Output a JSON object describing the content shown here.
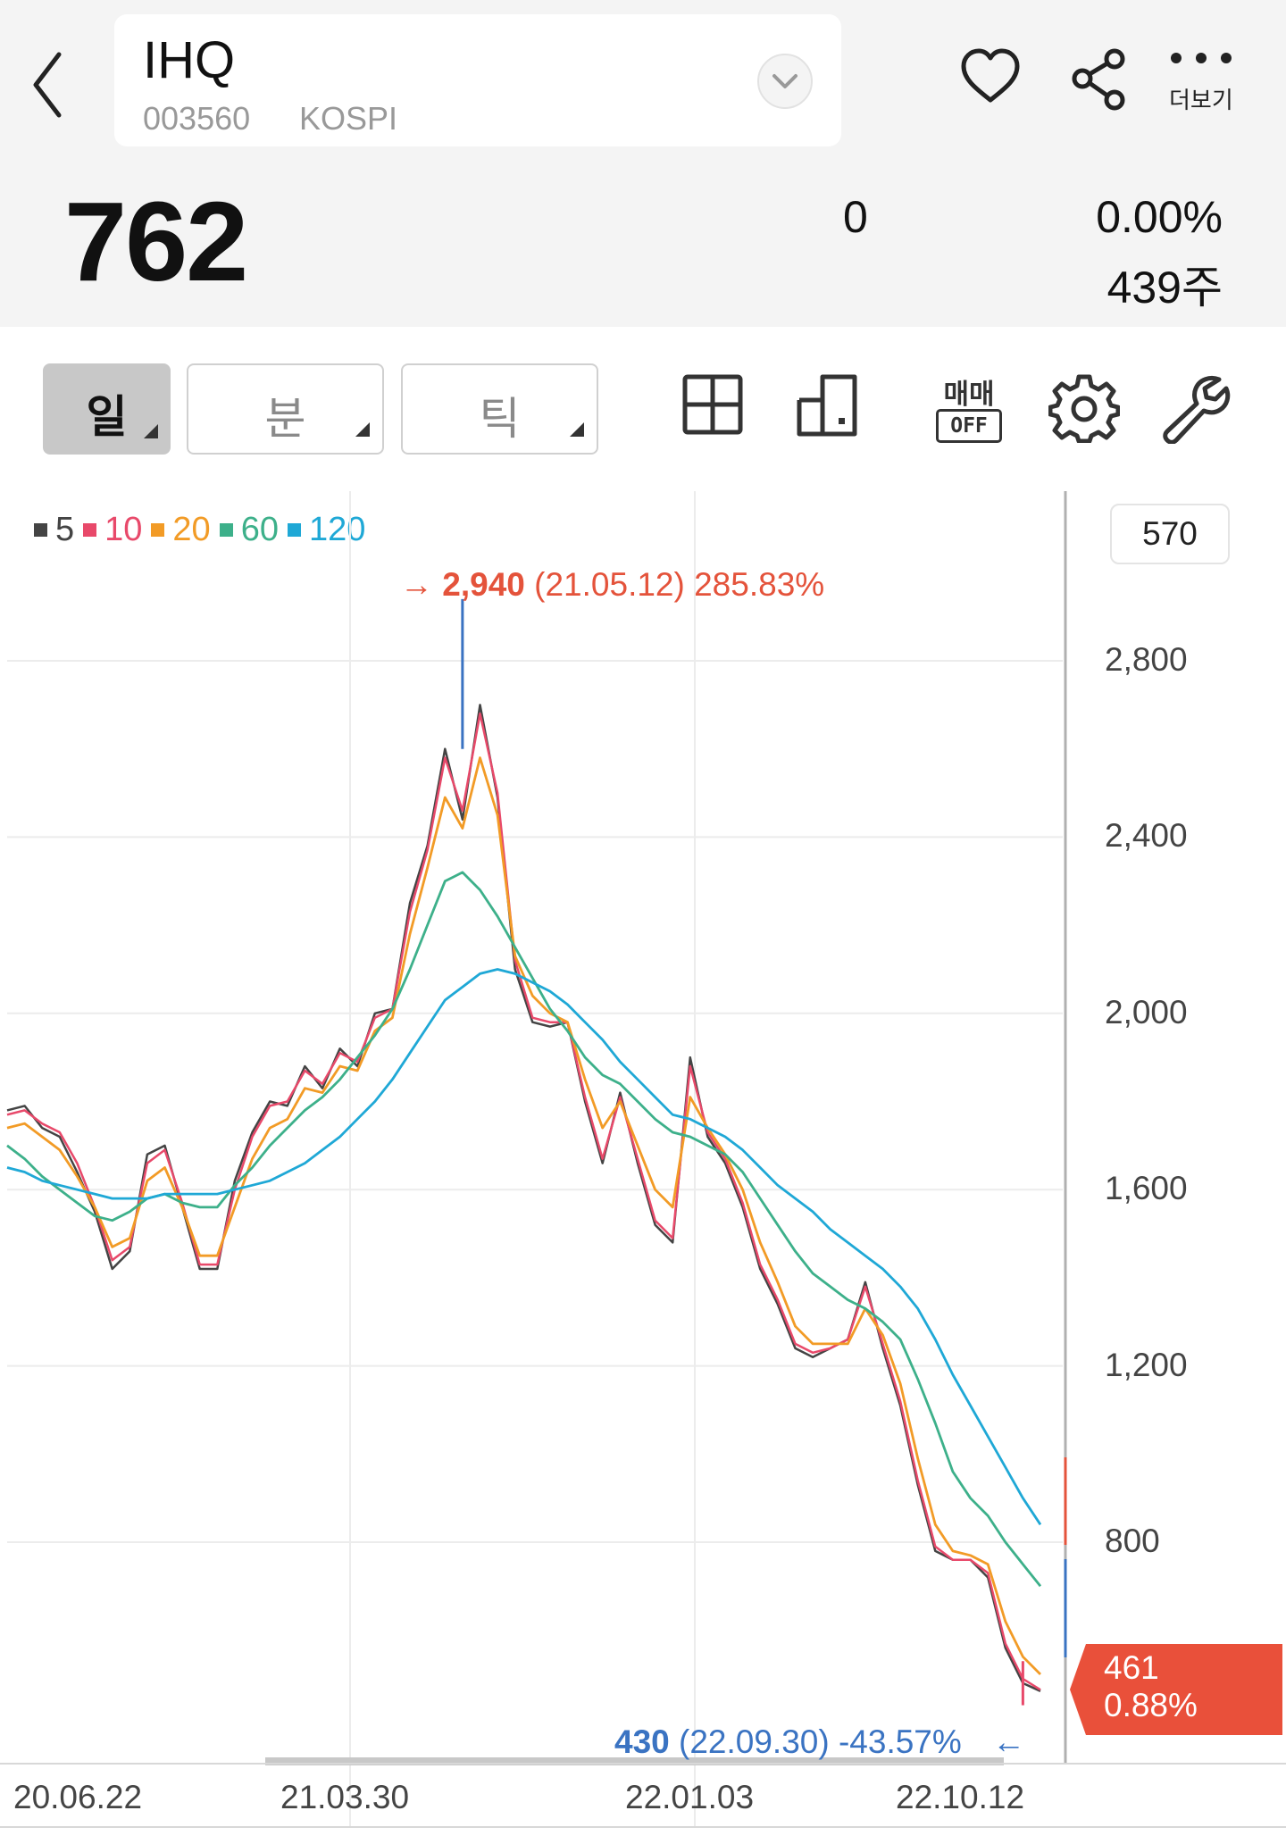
{
  "header": {
    "name": "IHQ",
    "code": "003560",
    "market": "KOSPI",
    "more_label": "더보기"
  },
  "quote": {
    "price": "762",
    "change": "0",
    "change_pct": "0.00%",
    "volume": "439주"
  },
  "toolbar": {
    "periods": [
      "일",
      "분",
      "틱"
    ],
    "trade_label_top": "매매",
    "trade_label_bottom": "OFF",
    "icons": [
      "grid-icon",
      "layout-icon",
      "trade-toggle-icon",
      "settings-icon",
      "wrench-icon"
    ]
  },
  "chart_data": {
    "type": "line",
    "legend": [
      {
        "label": "5",
        "color": "#444444"
      },
      {
        "label": "10",
        "color": "#e8496a"
      },
      {
        "label": "20",
        "color": "#f29b26"
      },
      {
        "label": "60",
        "color": "#3db08a"
      },
      {
        "label": "120",
        "color": "#1fa8d6"
      }
    ],
    "yticks": [
      2800,
      2400,
      2000,
      1600,
      1200,
      800
    ],
    "ylim": [
      400,
      3180
    ],
    "x_labels": [
      "20.06.22",
      "21.03.30",
      "22.01.03",
      "22.10.12"
    ],
    "current_box": "570",
    "high": {
      "value_text": "2,940",
      "date_text": "(21.05.12)",
      "pct_text": "285.83%"
    },
    "low": {
      "value_text": "430",
      "date_text": "(22.09.30)",
      "pct_text": "-43.57%"
    },
    "last": {
      "value": "461",
      "pct": "0.88%"
    },
    "series": [
      {
        "name": "5",
        "color": "#444444",
        "values": [
          1780,
          1790,
          1740,
          1720,
          1640,
          1550,
          1420,
          1460,
          1680,
          1700,
          1560,
          1420,
          1420,
          1620,
          1730,
          1800,
          1790,
          1880,
          1830,
          1920,
          1880,
          2000,
          2010,
          2250,
          2380,
          2600,
          2440,
          2700,
          2490,
          2100,
          1980,
          1970,
          1980,
          1800,
          1660,
          1820,
          1660,
          1520,
          1480,
          1900,
          1720,
          1660,
          1560,
          1420,
          1340,
          1240,
          1220,
          1240,
          1260,
          1390,
          1240,
          1110,
          930,
          780,
          760,
          760,
          720,
          560,
          480,
          462
        ]
      },
      {
        "name": "10",
        "color": "#e8496a",
        "values": [
          1770,
          1780,
          1750,
          1730,
          1660,
          1560,
          1440,
          1470,
          1660,
          1690,
          1570,
          1430,
          1430,
          1600,
          1720,
          1790,
          1800,
          1870,
          1840,
          1910,
          1890,
          1990,
          2010,
          2230,
          2370,
          2580,
          2460,
          2680,
          2500,
          2120,
          1990,
          1980,
          1980,
          1810,
          1670,
          1810,
          1670,
          1530,
          1490,
          1880,
          1730,
          1670,
          1570,
          1430,
          1350,
          1250,
          1230,
          1240,
          1260,
          1380,
          1250,
          1120,
          940,
          790,
          760,
          760,
          730,
          570,
          490,
          465
        ]
      },
      {
        "name": "20",
        "color": "#f29b26",
        "values": [
          1740,
          1750,
          1720,
          1690,
          1630,
          1560,
          1470,
          1490,
          1620,
          1650,
          1560,
          1450,
          1450,
          1560,
          1670,
          1740,
          1760,
          1830,
          1820,
          1880,
          1870,
          1960,
          1990,
          2180,
          2330,
          2490,
          2420,
          2580,
          2450,
          2130,
          2040,
          2000,
          1980,
          1850,
          1740,
          1800,
          1700,
          1600,
          1560,
          1810,
          1740,
          1680,
          1600,
          1480,
          1390,
          1290,
          1250,
          1250,
          1250,
          1330,
          1270,
          1160,
          990,
          840,
          780,
          770,
          750,
          620,
          540,
          500
        ]
      },
      {
        "name": "60",
        "color": "#3db08a",
        "values": [
          1700,
          1670,
          1630,
          1600,
          1570,
          1540,
          1530,
          1550,
          1580,
          1590,
          1570,
          1560,
          1560,
          1610,
          1650,
          1700,
          1740,
          1780,
          1810,
          1850,
          1900,
          1950,
          2010,
          2100,
          2200,
          2300,
          2320,
          2280,
          2220,
          2150,
          2080,
          2010,
          1960,
          1900,
          1860,
          1840,
          1800,
          1760,
          1730,
          1720,
          1700,
          1680,
          1640,
          1580,
          1520,
          1460,
          1410,
          1380,
          1350,
          1330,
          1300,
          1260,
          1170,
          1070,
          960,
          900,
          860,
          800,
          750,
          700
        ]
      },
      {
        "name": "120",
        "color": "#1fa8d6",
        "values": [
          1650,
          1640,
          1620,
          1610,
          1600,
          1590,
          1580,
          1580,
          1580,
          1590,
          1590,
          1590,
          1590,
          1600,
          1610,
          1620,
          1640,
          1660,
          1690,
          1720,
          1760,
          1800,
          1850,
          1910,
          1970,
          2030,
          2060,
          2090,
          2100,
          2090,
          2070,
          2050,
          2020,
          1980,
          1940,
          1890,
          1850,
          1810,
          1770,
          1760,
          1740,
          1720,
          1690,
          1650,
          1610,
          1580,
          1550,
          1510,
          1480,
          1450,
          1420,
          1380,
          1330,
          1260,
          1180,
          1110,
          1040,
          970,
          900,
          840
        ]
      }
    ]
  }
}
